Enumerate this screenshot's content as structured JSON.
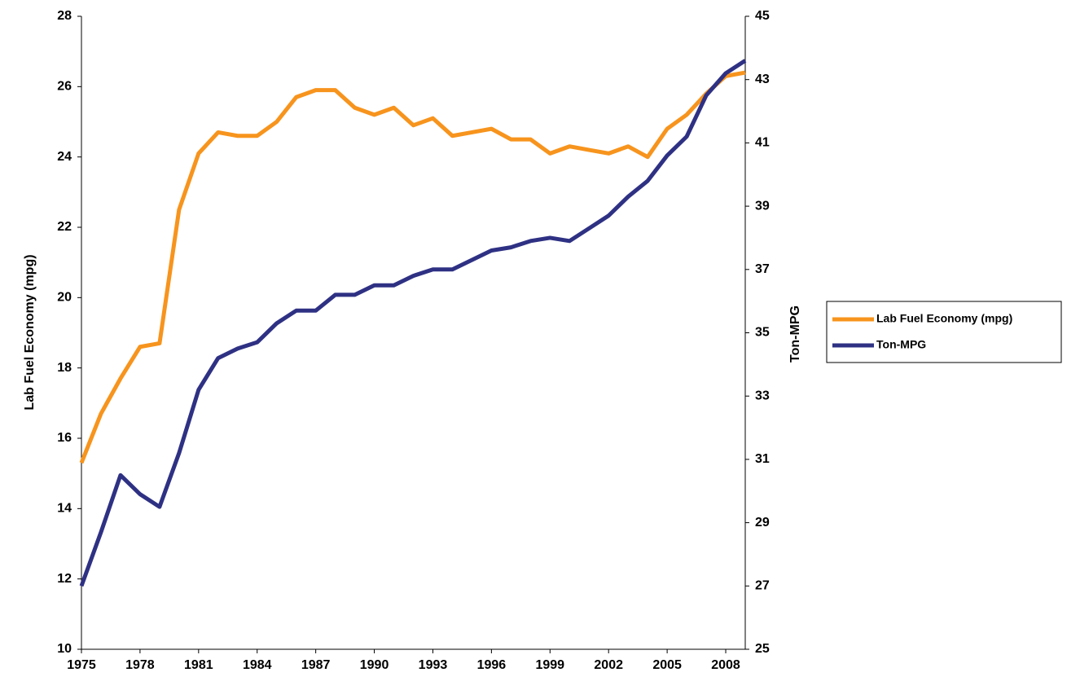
{
  "chart_data": {
    "type": "line",
    "x": [
      1975,
      1976,
      1977,
      1978,
      1979,
      1980,
      1981,
      1982,
      1983,
      1984,
      1985,
      1986,
      1987,
      1988,
      1989,
      1990,
      1991,
      1992,
      1993,
      1994,
      1995,
      1996,
      1997,
      1998,
      1999,
      2000,
      2001,
      2002,
      2003,
      2004,
      2005,
      2006,
      2007,
      2008,
      2009
    ],
    "series": [
      {
        "name": "Lab Fuel Economy (mpg)",
        "color": "#f7941d",
        "axis": "y",
        "values": [
          15.3,
          16.7,
          17.7,
          18.6,
          18.7,
          22.5,
          24.1,
          24.7,
          24.6,
          24.6,
          25.0,
          25.7,
          25.9,
          25.9,
          25.4,
          25.2,
          25.4,
          24.9,
          25.1,
          24.6,
          24.7,
          24.8,
          24.5,
          24.5,
          24.1,
          24.3,
          24.2,
          24.1,
          24.3,
          24.0,
          24.8,
          25.2,
          25.8,
          26.3,
          26.4
        ]
      },
      {
        "name": "Ton-MPG",
        "color": "#2e3183",
        "axis": "y2",
        "values": [
          27.0,
          28.7,
          30.5,
          29.9,
          29.5,
          31.2,
          33.2,
          34.2,
          34.5,
          34.7,
          35.3,
          35.7,
          35.7,
          36.2,
          36.2,
          36.5,
          36.5,
          36.8,
          37.0,
          37.0,
          37.3,
          37.6,
          37.7,
          37.9,
          38.0,
          37.9,
          38.3,
          38.7,
          39.3,
          39.8,
          40.6,
          41.2,
          42.5,
          43.2,
          43.6
        ]
      }
    ],
    "y_label": "Lab Fuel Economy (mpg)",
    "y2_label": "Ton-MPG",
    "xlim": [
      1975,
      2009
    ],
    "xticks": [
      1975,
      1978,
      1981,
      1984,
      1987,
      1990,
      1993,
      1996,
      1999,
      2002,
      2005,
      2008
    ],
    "ylim": [
      10,
      28
    ],
    "yticks": [
      10,
      12,
      14,
      16,
      18,
      20,
      22,
      24,
      26,
      28
    ],
    "y2lim": [
      25,
      45
    ],
    "y2ticks": [
      25,
      27,
      29,
      31,
      33,
      35,
      37,
      39,
      41,
      43,
      45
    ],
    "legend": "right"
  }
}
